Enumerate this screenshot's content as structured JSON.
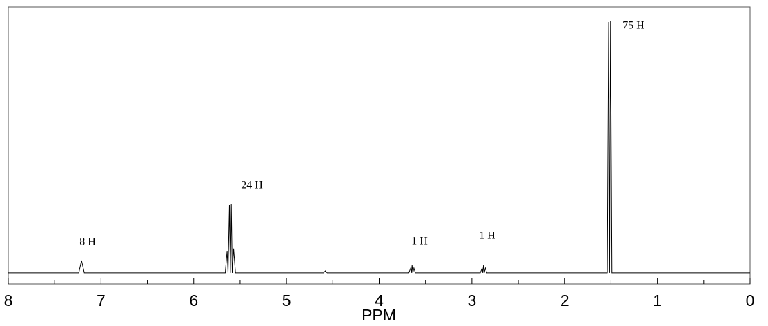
{
  "chart_data": {
    "type": "line",
    "xlabel": "PPM",
    "x": [
      8,
      7.24,
      7.21,
      7.18,
      5.66,
      5.64,
      5.63,
      5.615,
      5.605,
      5.595,
      5.585,
      5.57,
      5.55,
      4.6,
      4.58,
      4.56,
      3.68,
      3.66,
      3.652,
      3.645,
      3.637,
      3.625,
      3.61,
      2.91,
      2.89,
      2.882,
      2.875,
      2.867,
      2.855,
      2.84,
      1.54,
      1.525,
      1.515,
      1.505,
      1.49,
      0
    ],
    "values": [
      0,
      0,
      4.9,
      0,
      0,
      8.7,
      0,
      26.8,
      0,
      27.3,
      0,
      9.6,
      0,
      0,
      0.8,
      0,
      0,
      1.9,
      0,
      3.0,
      0,
      1.9,
      0,
      0,
      1.9,
      0,
      3.0,
      0,
      1.9,
      0,
      0,
      99.5,
      0,
      100,
      0,
      0
    ],
    "color": "#000000",
    "xlim": [
      8,
      0
    ],
    "ylim": [
      -4.4,
      105.5
    ],
    "xticks": [
      8,
      7,
      6,
      5,
      4,
      3,
      2,
      1,
      0
    ],
    "xminorticks": [
      7.5,
      6.5,
      5.5,
      4.5,
      3.5,
      2.5,
      1.5,
      0.5
    ],
    "annotations": [
      "8 H",
      "24 H",
      "1 H",
      "1 H",
      "75 H"
    ]
  }
}
